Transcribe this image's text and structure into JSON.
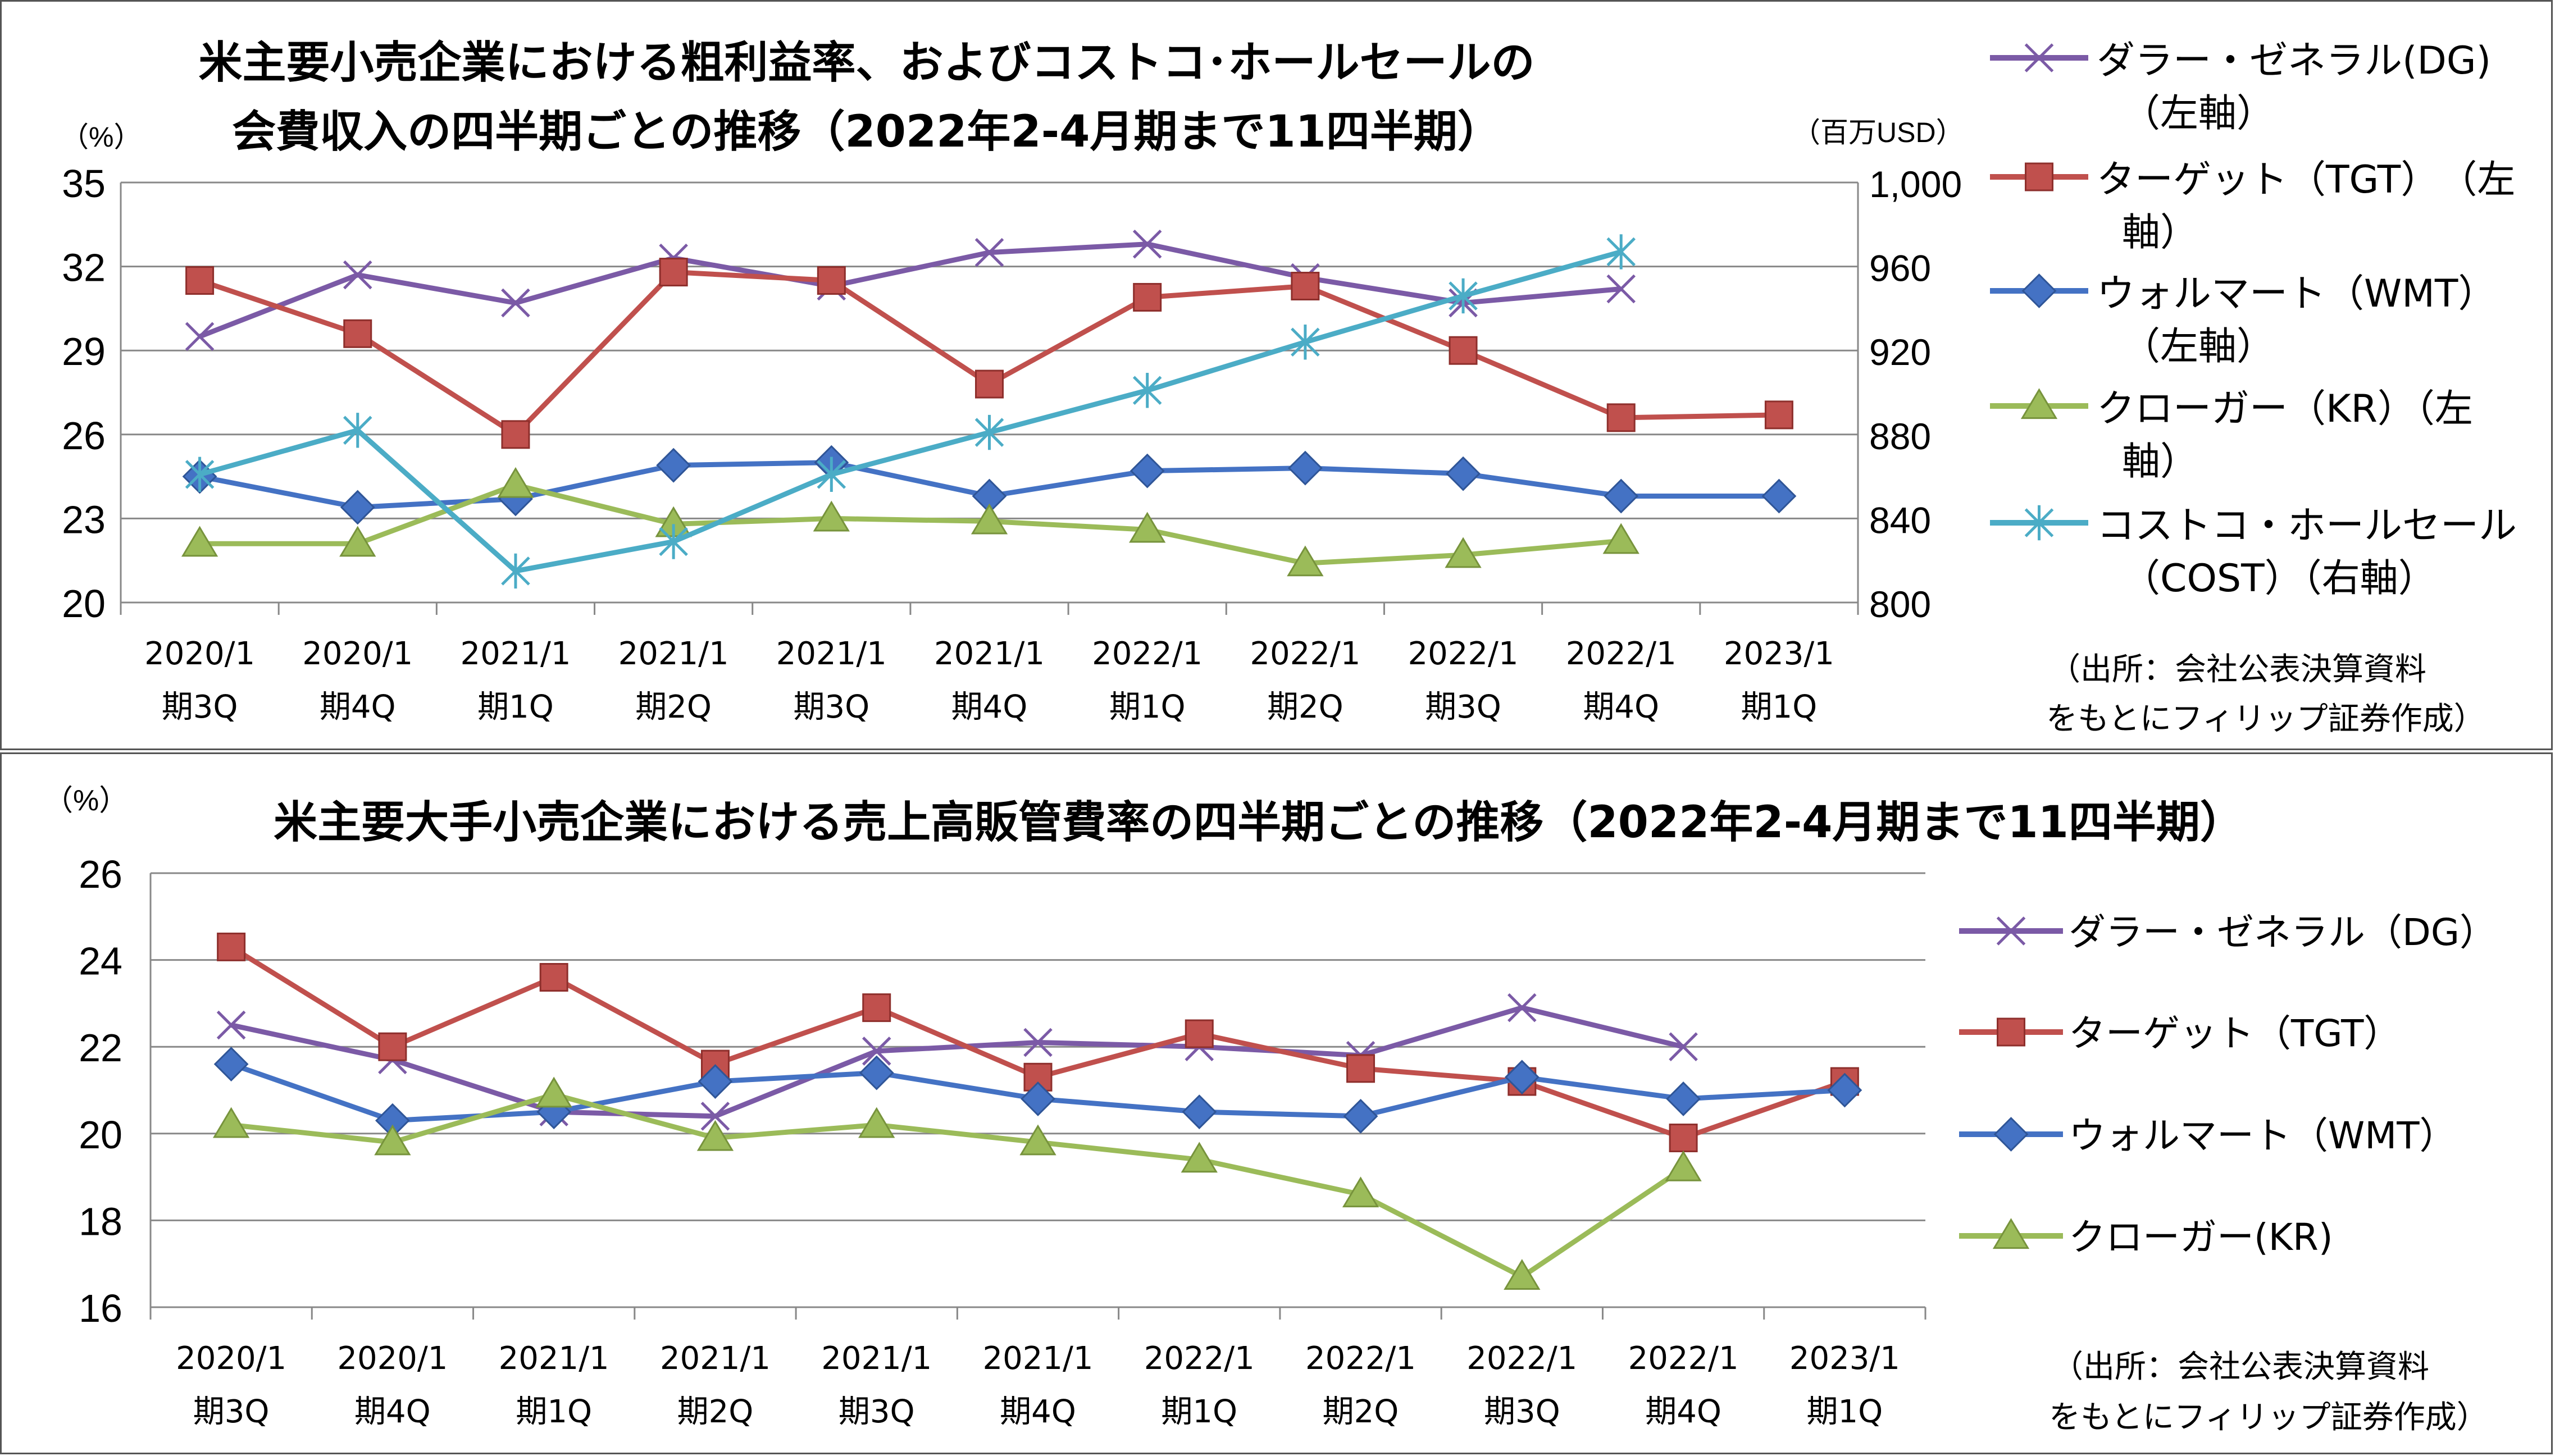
{
  "chart_data": [
    {
      "type": "line",
      "title_lines": [
        "米主要小売企業における粗利益率、およびコストコ･ホールセールの",
        "会費収入の四半期ごとの推移（2022年2-4月期まで11四半期）"
      ],
      "ylabel_left": "（%）",
      "ylabel_right": "（百万USD）",
      "y_left_ticks": [
        "20",
        "23",
        "26",
        "29",
        "32",
        "35"
      ],
      "y_right_ticks": [
        "800",
        "840",
        "880",
        "920",
        "960",
        "1,000"
      ],
      "ylim_left": [
        20,
        35
      ],
      "ylim_right": [
        800,
        1000
      ],
      "grid": true,
      "legend_position": "right",
      "categories": [
        [
          "2020/1",
          "期3Q"
        ],
        [
          "2020/1",
          "期4Q"
        ],
        [
          "2021/1",
          "期1Q"
        ],
        [
          "2021/1",
          "期2Q"
        ],
        [
          "2021/1",
          "期3Q"
        ],
        [
          "2021/1",
          "期4Q"
        ],
        [
          "2022/1",
          "期1Q"
        ],
        [
          "2022/1",
          "期2Q"
        ],
        [
          "2022/1",
          "期3Q"
        ],
        [
          "2022/1",
          "期4Q"
        ],
        [
          "2023/1",
          "期1Q"
        ]
      ],
      "series": [
        {
          "name_lines": [
            "ダラー・ゼネラル(DG)",
            "（左軸）"
          ],
          "axis": "left",
          "color": "#7B5AA6",
          "marker": "x",
          "values": [
            29.5,
            31.7,
            30.7,
            32.3,
            31.3,
            32.5,
            32.8,
            31.6,
            30.7,
            31.2,
            null
          ]
        },
        {
          "name_lines": [
            "ターゲット（TGT）　（左",
            "軸）"
          ],
          "axis": "left",
          "color": "#C0504D",
          "marker": "square",
          "values": [
            31.5,
            29.6,
            26.0,
            31.8,
            31.5,
            27.8,
            30.9,
            31.3,
            29.0,
            26.6,
            26.7
          ]
        },
        {
          "name_lines": [
            "ウォルマート（WMT）",
            "（左軸）"
          ],
          "axis": "left",
          "color": "#4472C4",
          "marker": "diamond",
          "values": [
            24.5,
            23.4,
            23.7,
            24.9,
            25.0,
            23.8,
            24.7,
            24.8,
            24.6,
            23.8,
            23.8
          ]
        },
        {
          "name_lines": [
            "クローガー（KR）（左",
            "軸）"
          ],
          "axis": "left",
          "color": "#9BBB59",
          "marker": "triangle",
          "values": [
            22.1,
            22.1,
            24.2,
            22.8,
            23.0,
            22.9,
            22.6,
            21.4,
            21.7,
            22.2,
            null
          ]
        },
        {
          "name_lines": [
            "コストコ・ホールセール",
            "（COST）（右軸）"
          ],
          "axis": "right",
          "color": "#4BACC6",
          "marker": "star",
          "values": [
            861,
            882,
            815,
            829,
            861,
            881,
            901,
            924,
            946,
            967,
            null
          ]
        }
      ],
      "source_lines": [
        "（出所：会社公表決算資料",
        "をもとにフィリップ証券作成）"
      ]
    },
    {
      "type": "line",
      "title": "米主要大手小売企業における売上高販管費率の四半期ごとの推移（2022年2-4月期まで11四半期）",
      "ylabel": "（%）",
      "y_ticks": [
        "16",
        "18",
        "20",
        "22",
        "24",
        "26"
      ],
      "ylim": [
        16,
        26
      ],
      "grid": true,
      "legend_position": "right",
      "categories": [
        [
          "2020/1",
          "期3Q"
        ],
        [
          "2020/1",
          "期4Q"
        ],
        [
          "2021/1",
          "期1Q"
        ],
        [
          "2021/1",
          "期2Q"
        ],
        [
          "2021/1",
          "期3Q"
        ],
        [
          "2021/1",
          "期4Q"
        ],
        [
          "2022/1",
          "期1Q"
        ],
        [
          "2022/1",
          "期2Q"
        ],
        [
          "2022/1",
          "期3Q"
        ],
        [
          "2022/1",
          "期4Q"
        ],
        [
          "2023/1",
          "期1Q"
        ]
      ],
      "series": [
        {
          "name": "ダラー・ゼネラル（DG）",
          "color": "#7B5AA6",
          "marker": "x",
          "values": [
            22.5,
            21.7,
            20.5,
            20.4,
            21.9,
            22.1,
            22.0,
            21.8,
            22.9,
            22.0,
            null
          ]
        },
        {
          "name": "ターゲット（TGT）",
          "color": "#C0504D",
          "marker": "square",
          "values": [
            24.3,
            22.0,
            23.6,
            21.6,
            22.9,
            21.3,
            22.3,
            21.5,
            21.2,
            19.9,
            21.2
          ]
        },
        {
          "name": "ウォルマート（WMT）",
          "color": "#4472C4",
          "marker": "diamond",
          "values": [
            21.6,
            20.3,
            20.5,
            21.2,
            21.4,
            20.8,
            20.5,
            20.4,
            21.3,
            20.8,
            21.0
          ]
        },
        {
          "name": "クローガー(KR)",
          "color": "#9BBB59",
          "marker": "triangle",
          "values": [
            20.2,
            19.8,
            20.9,
            19.9,
            20.2,
            19.8,
            19.4,
            18.6,
            16.7,
            19.2,
            null
          ]
        }
      ],
      "source_lines": [
        "（出所：会社公表決算資料",
        "をもとにフィリップ証券作成）"
      ]
    }
  ]
}
